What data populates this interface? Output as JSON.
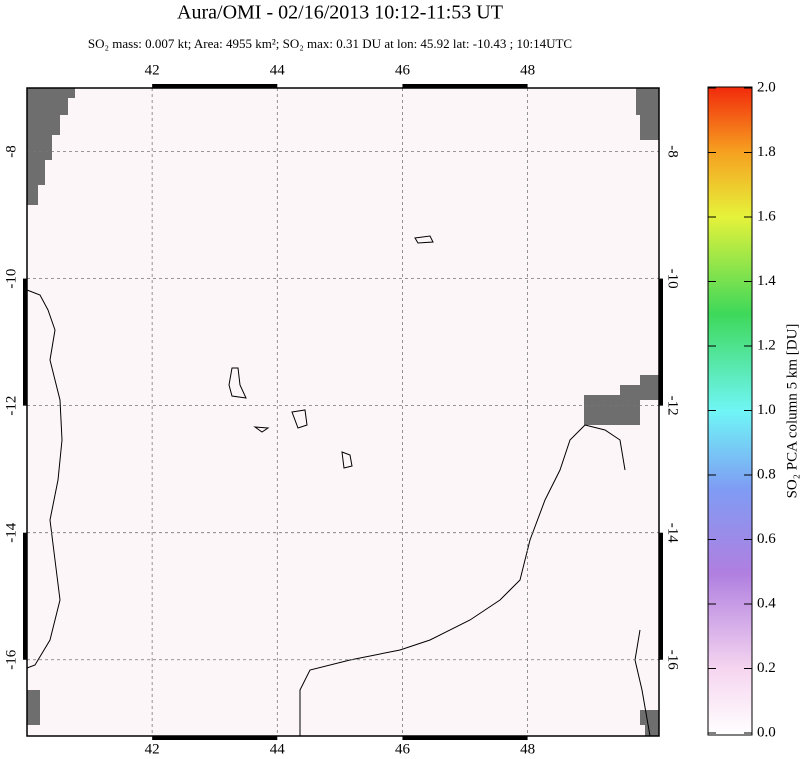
{
  "chart_data": {
    "type": "map",
    "title": "Aura/OMI - 02/16/2013 10:12-11:53 UT",
    "subtitle": "SO₂ mass: 0.007 kt; Area: 4955 km²; SO₂ max: 0.31 DU at lon: 45.92 lat: -10.43 ; 10:14UTC",
    "xlim": [
      40,
      50.1
    ],
    "ylim": [
      -17.2,
      -7.0
    ],
    "xticks": [
      42,
      44,
      46,
      48
    ],
    "yticks": [
      -8,
      -10,
      -12,
      -14,
      -16
    ],
    "grid": true,
    "colorbar": {
      "label": "SO₂ PCA column 5 km [DU]",
      "lim": [
        0,
        2.0
      ],
      "ticks": [
        {
          "value": 0,
          "label": "0.0"
        },
        {
          "value": 0.2,
          "label": "0.2"
        },
        {
          "value": 0.4,
          "label": "0.4"
        },
        {
          "value": 0.6,
          "label": "0.6"
        },
        {
          "value": 0.8,
          "label": "0.8"
        },
        {
          "value": 1.0,
          "label": "1.0"
        },
        {
          "value": 1.2,
          "label": "1.2"
        },
        {
          "value": 1.4,
          "label": "1.4"
        },
        {
          "value": 1.6,
          "label": "1.6"
        },
        {
          "value": 1.8,
          "label": "1.8"
        },
        {
          "value": 2.0,
          "label": "2.0"
        }
      ]
    }
  }
}
